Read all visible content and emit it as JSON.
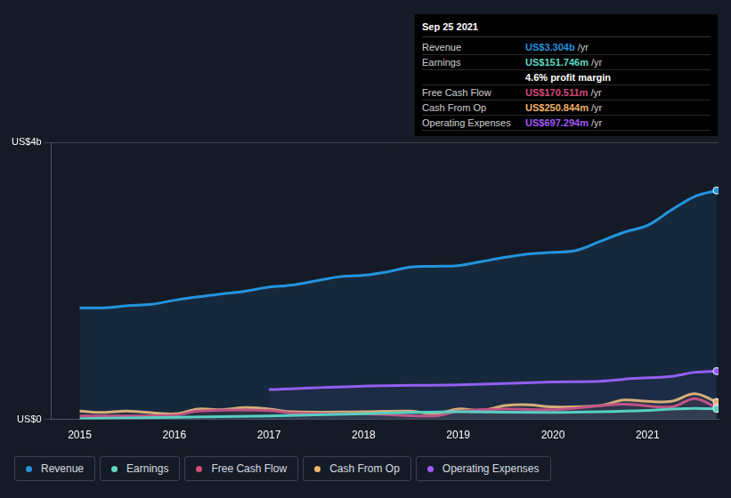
{
  "chart_data": {
    "type": "line",
    "xlim": [
      2014.7,
      2021.75
    ],
    "xticks": [
      2015,
      2016,
      2017,
      2018,
      2019,
      2020,
      2021
    ],
    "ylim": [
      0,
      4
    ],
    "yticks": [
      {
        "value": 0,
        "label": "US$0"
      },
      {
        "value": 4,
        "label": "US$4b"
      }
    ],
    "grid": true,
    "legend": "bottom",
    "series": [
      {
        "name": "Revenue",
        "color": "#2394df",
        "x": [
          2015.0,
          2015.25,
          2015.5,
          2015.75,
          2016.0,
          2016.25,
          2016.5,
          2016.75,
          2017.0,
          2017.25,
          2017.5,
          2017.75,
          2018.0,
          2018.25,
          2018.5,
          2018.75,
          2019.0,
          2019.25,
          2019.5,
          2019.75,
          2020.0,
          2020.25,
          2020.5,
          2020.75,
          2021.0,
          2021.25,
          2021.5,
          2021.73
        ],
        "values": [
          1.61,
          1.61,
          1.64,
          1.66,
          1.72,
          1.77,
          1.81,
          1.85,
          1.91,
          1.94,
          2.0,
          2.06,
          2.08,
          2.13,
          2.2,
          2.21,
          2.22,
          2.28,
          2.34,
          2.39,
          2.41,
          2.44,
          2.57,
          2.7,
          2.8,
          3.02,
          3.22,
          3.304
        ]
      },
      {
        "name": "Earnings",
        "color": "#5fd9c0",
        "x": [
          2015.0,
          2016.0,
          2017.0,
          2018.0,
          2018.5,
          2019.0,
          2020.0,
          2020.5,
          2021.0,
          2021.25,
          2021.5,
          2021.73
        ],
        "values": [
          0.01,
          0.03,
          0.05,
          0.08,
          0.1,
          0.11,
          0.1,
          0.11,
          0.13,
          0.15,
          0.16,
          0.152
        ]
      },
      {
        "name": "Free Cash Flow",
        "color": "#d84a7a",
        "x": [
          2015.0,
          2016.0,
          2016.25,
          2017.0,
          2017.25,
          2018.0,
          2018.75,
          2019.0,
          2019.5,
          2020.0,
          2020.75,
          2021.25,
          2021.5,
          2021.73
        ],
        "values": [
          0.05,
          0.06,
          0.12,
          0.13,
          0.09,
          0.08,
          0.05,
          0.12,
          0.15,
          0.14,
          0.22,
          0.18,
          0.3,
          0.171
        ]
      },
      {
        "name": "Cash From Op",
        "color": "#f0b36a",
        "x": [
          2015.0,
          2015.25,
          2015.5,
          2016.0,
          2016.25,
          2016.5,
          2016.75,
          2017.0,
          2017.25,
          2018.0,
          2018.5,
          2018.75,
          2019.0,
          2019.25,
          2019.5,
          2019.75,
          2020.0,
          2020.5,
          2020.75,
          2021.0,
          2021.25,
          2021.5,
          2021.73
        ],
        "values": [
          0.12,
          0.1,
          0.12,
          0.08,
          0.15,
          0.14,
          0.17,
          0.15,
          0.11,
          0.11,
          0.12,
          0.08,
          0.15,
          0.13,
          0.2,
          0.21,
          0.18,
          0.2,
          0.28,
          0.26,
          0.26,
          0.37,
          0.251
        ]
      },
      {
        "name": "Operating Expenses",
        "color": "#a259f5",
        "x": [
          2017.0,
          2018.0,
          2019.0,
          2020.0,
          2020.5,
          2020.75,
          2021.0,
          2021.25,
          2021.5,
          2021.73
        ],
        "values": [
          0.43,
          0.48,
          0.5,
          0.54,
          0.55,
          0.58,
          0.6,
          0.62,
          0.68,
          0.697
        ]
      }
    ],
    "tooltip": {
      "title": "Sep 25 2021",
      "rows": [
        {
          "label": "Revenue",
          "value": "US$3.304b",
          "unit": "/yr",
          "color": "#2394df"
        },
        {
          "label": "Earnings",
          "value": "US$151.746m",
          "unit": "/yr",
          "color": "#5fd9c0"
        },
        {
          "value": "4.6% profit margin",
          "color": "#ffffff"
        },
        {
          "label": "Free Cash Flow",
          "value": "US$170.511m",
          "unit": "/yr",
          "color": "#d84a7a"
        },
        {
          "label": "Cash From Op",
          "value": "US$250.844m",
          "unit": "/yr",
          "color": "#f0b36a"
        },
        {
          "label": "Operating Expenses",
          "value": "US$697.294m",
          "unit": "/yr",
          "color": "#a259f5"
        }
      ]
    }
  }
}
